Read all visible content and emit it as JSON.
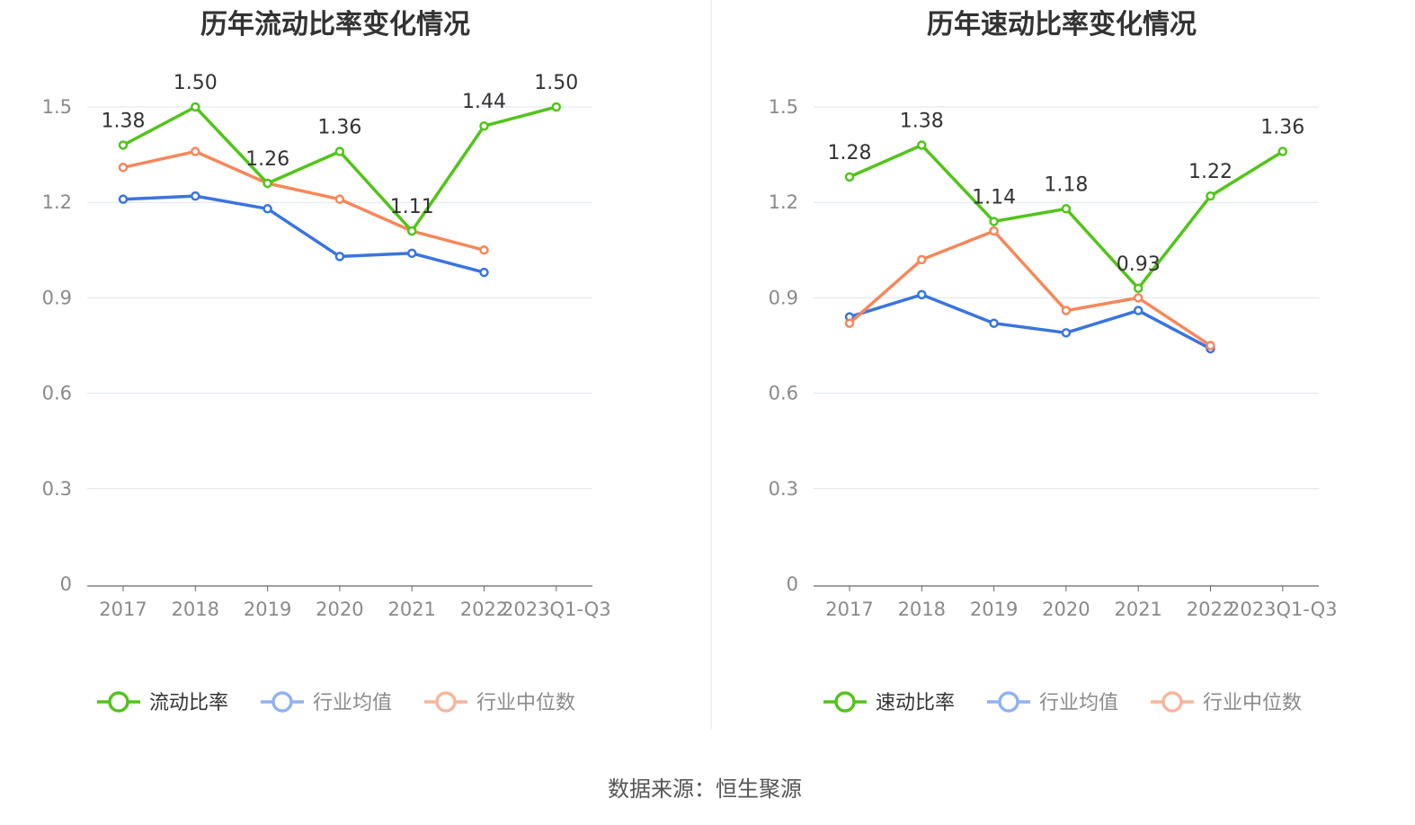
{
  "source": "数据来源：恒生聚源",
  "colors": {
    "main": "#52c41a",
    "avg": "#3a74e0",
    "median": "#f5875a",
    "avg_legend": "#8fb3f0",
    "median_legend": "#f8b59c",
    "grid": "#dde3ee",
    "axis": "#666666"
  },
  "chart_data": [
    {
      "type": "line",
      "title": "历年流动比率变化情况",
      "categories": [
        "2017",
        "2018",
        "2019",
        "2020",
        "2021",
        "2022",
        "2023Q1-Q3"
      ],
      "ylim": [
        0,
        1.5
      ],
      "yticks": [
        "0",
        "0.3",
        "0.6",
        "0.9",
        "1.2",
        "1.5"
      ],
      "legend_position": "bottom",
      "series": [
        {
          "name": "流动比率",
          "color": "#52c41a",
          "labeled": true,
          "values": [
            1.38,
            1.5,
            1.26,
            1.36,
            1.11,
            1.44,
            1.5
          ],
          "labels": [
            "1.38",
            "1.50",
            "1.26",
            "1.36",
            "1.11",
            "1.44",
            "1.50"
          ]
        },
        {
          "name": "行业均值",
          "color": "#3a74e0",
          "labeled": false,
          "values": [
            1.21,
            1.22,
            1.18,
            1.03,
            1.04,
            0.98,
            null
          ]
        },
        {
          "name": "行业中位数",
          "color": "#f5875a",
          "labeled": false,
          "values": [
            1.31,
            1.36,
            1.26,
            1.21,
            1.11,
            1.05,
            null
          ]
        }
      ]
    },
    {
      "type": "line",
      "title": "历年速动比率变化情况",
      "categories": [
        "2017",
        "2018",
        "2019",
        "2020",
        "2021",
        "2022",
        "2023Q1-Q3"
      ],
      "ylim": [
        0,
        1.5
      ],
      "yticks": [
        "0",
        "0.3",
        "0.6",
        "0.9",
        "1.2",
        "1.5"
      ],
      "legend_position": "bottom",
      "series": [
        {
          "name": "速动比率",
          "color": "#52c41a",
          "labeled": true,
          "values": [
            1.28,
            1.38,
            1.14,
            1.18,
            0.93,
            1.22,
            1.36
          ],
          "labels": [
            "1.28",
            "1.38",
            "1.14",
            "1.18",
            "0.93",
            "1.22",
            "1.36"
          ]
        },
        {
          "name": "行业均值",
          "color": "#3a74e0",
          "labeled": false,
          "values": [
            0.84,
            0.91,
            0.82,
            0.79,
            0.86,
            0.74,
            null
          ]
        },
        {
          "name": "行业中位数",
          "color": "#f5875a",
          "labeled": false,
          "values": [
            0.82,
            1.02,
            1.11,
            0.86,
            0.9,
            0.75,
            null
          ]
        }
      ]
    }
  ]
}
